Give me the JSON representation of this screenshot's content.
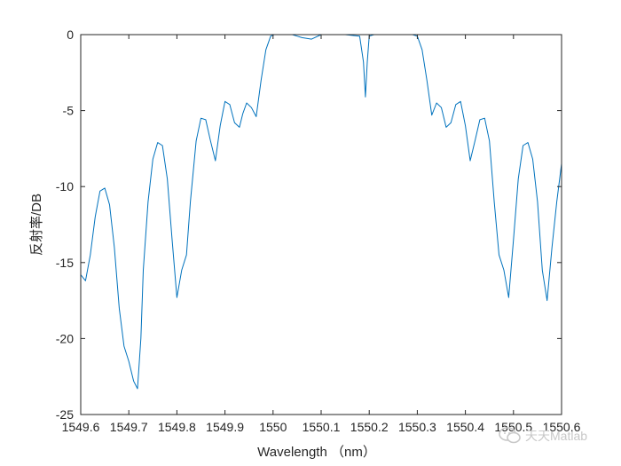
{
  "chart_data": {
    "type": "line",
    "xlabel": "Wavelength （nm）",
    "ylabel": "反射率/DB",
    "xlim": [
      1549.6,
      1550.6
    ],
    "ylim": [
      -25,
      0
    ],
    "xticks": [
      "1549.6",
      "1549.7",
      "1549.8",
      "1549.9",
      "1550",
      "1550.1",
      "1550.2",
      "1550.3",
      "1550.4",
      "1550.5",
      "1550.6"
    ],
    "yticks": [
      "0",
      "-5",
      "-10",
      "-15",
      "-20",
      "-25"
    ],
    "grid": false,
    "line_color": "#0072BD",
    "series": [
      {
        "x": [
          1549.6,
          1549.61,
          1549.62,
          1549.63,
          1549.64,
          1549.65,
          1549.66,
          1549.67,
          1549.68,
          1549.69,
          1549.7,
          1549.71,
          1549.718,
          1549.725,
          1549.73,
          1549.74,
          1549.75,
          1549.76,
          1549.77,
          1549.78,
          1549.79,
          1549.8,
          1549.81,
          1549.82,
          1549.828,
          1549.84,
          1549.85,
          1549.86,
          1549.87,
          1549.88,
          1549.89,
          1549.9,
          1549.91,
          1549.92,
          1549.93,
          1549.937,
          1549.945,
          1549.955,
          1549.965,
          1549.975,
          1549.985,
          1549.995,
          1550.002,
          1550.01,
          1550.018,
          1550.025,
          1550.033,
          1550.04,
          1550.05,
          1550.06,
          1550.08,
          1550.1,
          1550.15,
          1550.18,
          1550.188,
          1550.192,
          1550.196,
          1550.2,
          1550.21,
          1550.26,
          1550.29,
          1550.3,
          1550.31,
          1550.32,
          1550.33,
          1550.34,
          1550.35,
          1550.36,
          1550.37,
          1550.38,
          1550.39,
          1550.4,
          1550.41,
          1550.42,
          1550.43,
          1550.44,
          1550.45,
          1550.46,
          1550.47,
          1550.48,
          1550.49,
          1550.5,
          1550.51,
          1550.52,
          1550.53,
          1550.54,
          1550.55,
          1550.56,
          1550.57,
          1550.58,
          1550.59,
          1550.6
        ],
        "y": [
          -15.8,
          -16.2,
          -14.5,
          -12.0,
          -10.3,
          -10.1,
          -11.2,
          -14.0,
          -18.0,
          -20.5,
          -21.5,
          -22.8,
          -23.3,
          -20.0,
          -15.5,
          -11.0,
          -8.2,
          -7.1,
          -7.3,
          -9.5,
          -13.5,
          -17.3,
          -15.5,
          -14.5,
          -11.0,
          -7.0,
          -5.5,
          -5.6,
          -7.0,
          -8.3,
          -6.0,
          -4.4,
          -4.6,
          -5.8,
          -6.1,
          -5.2,
          -4.5,
          -4.8,
          -5.4,
          -3.0,
          -1.0,
          -0.1,
          0.0,
          0.0,
          0.0,
          0.0,
          0.0,
          0.0,
          -0.1,
          -0.2,
          -0.3,
          0.0,
          0.0,
          -0.1,
          -1.8,
          -4.1,
          -1.8,
          -0.1,
          0.0,
          0.0,
          0.0,
          -0.1,
          -1.0,
          -3.0,
          -5.3,
          -4.5,
          -4.8,
          -6.1,
          -5.8,
          -4.6,
          -4.4,
          -6.0,
          -8.3,
          -7.0,
          -5.6,
          -5.5,
          -7.0,
          -11.0,
          -14.5,
          -15.5,
          -17.3,
          -13.5,
          -9.5,
          -7.3,
          -7.1,
          -8.2,
          -11.0,
          -15.5,
          -17.5,
          -14.0,
          -11.0,
          -8.5
        ]
      }
    ]
  },
  "watermark": {
    "text": "天天Matlab",
    "icon": "wechat-icon"
  }
}
